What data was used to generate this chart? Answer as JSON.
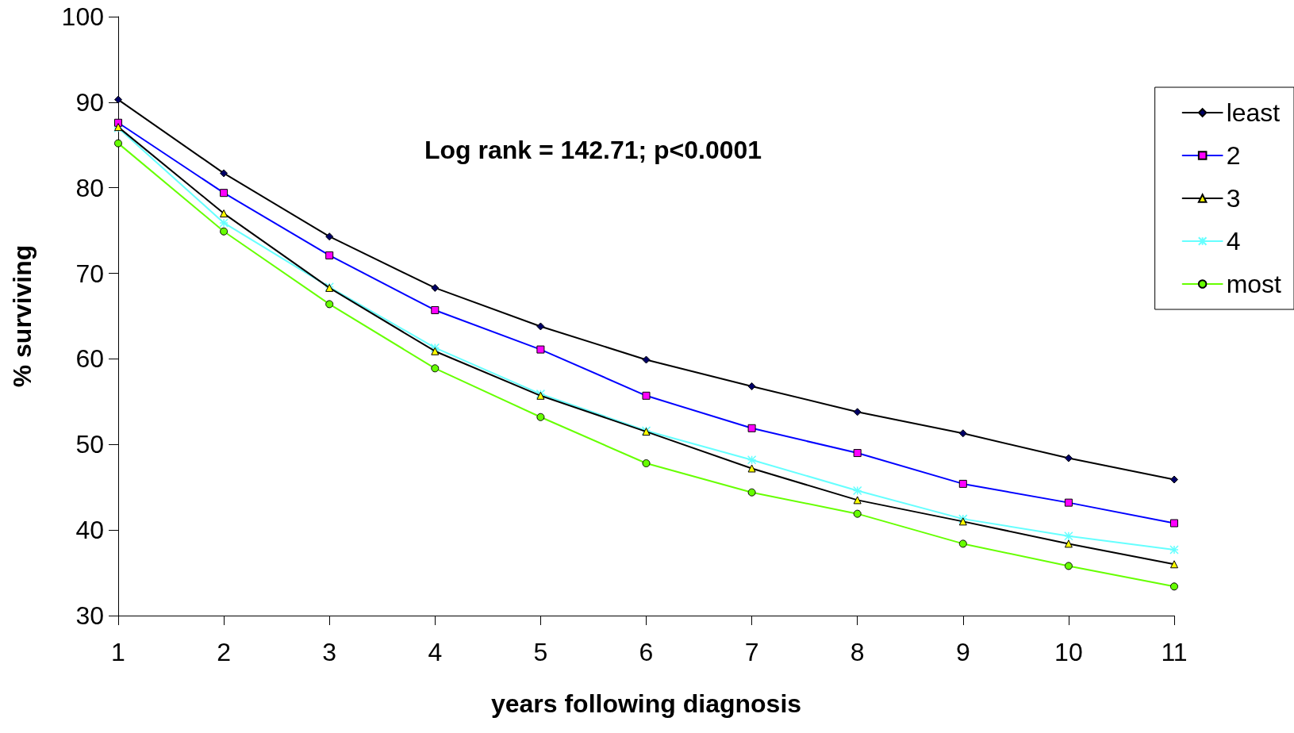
{
  "chart_data": {
    "type": "line",
    "xlabel": "years following diagnosis",
    "ylabel": "% surviving",
    "annotations": [
      "Log rank = 142.71; p<0.0001"
    ],
    "x": [
      1,
      2,
      3,
      4,
      5,
      6,
      7,
      8,
      9,
      10,
      11
    ],
    "xlim": [
      1,
      11
    ],
    "xticks": [
      1,
      2,
      3,
      4,
      5,
      6,
      7,
      8,
      9,
      10,
      11
    ],
    "ylim": [
      30,
      100
    ],
    "yticks": [
      30,
      40,
      50,
      60,
      70,
      80,
      90,
      100
    ],
    "grid": false,
    "legend": "top right",
    "line_style": "solid",
    "series": [
      {
        "name": "least",
        "color": "#000066",
        "marker": "diamond",
        "values": [
          90.3,
          81.7,
          74.3,
          68.3,
          63.8,
          59.9,
          56.8,
          53.8,
          51.3,
          48.4,
          45.9
        ]
      },
      {
        "name": "2",
        "color": "#ff00ff",
        "marker": "square",
        "values": [
          87.6,
          79.4,
          72.1,
          65.7,
          61.1,
          55.7,
          51.9,
          49.0,
          45.4,
          43.2,
          40.8
        ]
      },
      {
        "name": "3",
        "color": "#ffff00",
        "marker": "triangle",
        "values": [
          87.1,
          77.0,
          68.3,
          60.9,
          55.7,
          51.5,
          47.2,
          43.5,
          41.0,
          38.4,
          36.0
        ]
      },
      {
        "name": "4",
        "color": "#66ffff",
        "marker": "cross",
        "values": [
          87.0,
          75.9,
          68.4,
          61.3,
          55.9,
          51.6,
          48.2,
          44.6,
          41.3,
          39.3,
          37.7
        ]
      },
      {
        "name": "most",
        "color": "#66ff00",
        "marker": "circle",
        "values": [
          85.2,
          74.9,
          66.4,
          58.9,
          53.2,
          47.8,
          44.4,
          41.9,
          38.4,
          35.8,
          33.4
        ]
      }
    ]
  }
}
